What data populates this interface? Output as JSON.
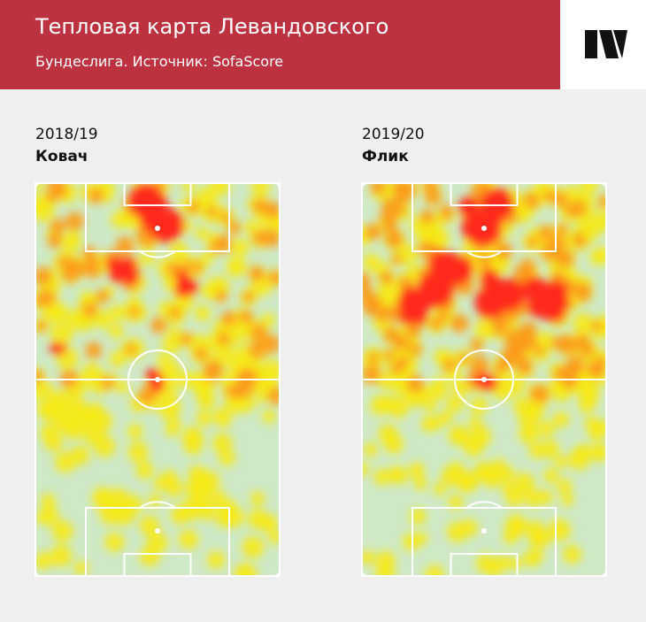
{
  "header": {
    "title": "Тепловая карта Левандовского",
    "subtitle": "Бундеслига. Источник: SofaScore"
  },
  "panels": [
    {
      "season": "2018/19",
      "coach": "Ковач"
    },
    {
      "season": "2019/20",
      "coach": "Флик"
    }
  ]
}
